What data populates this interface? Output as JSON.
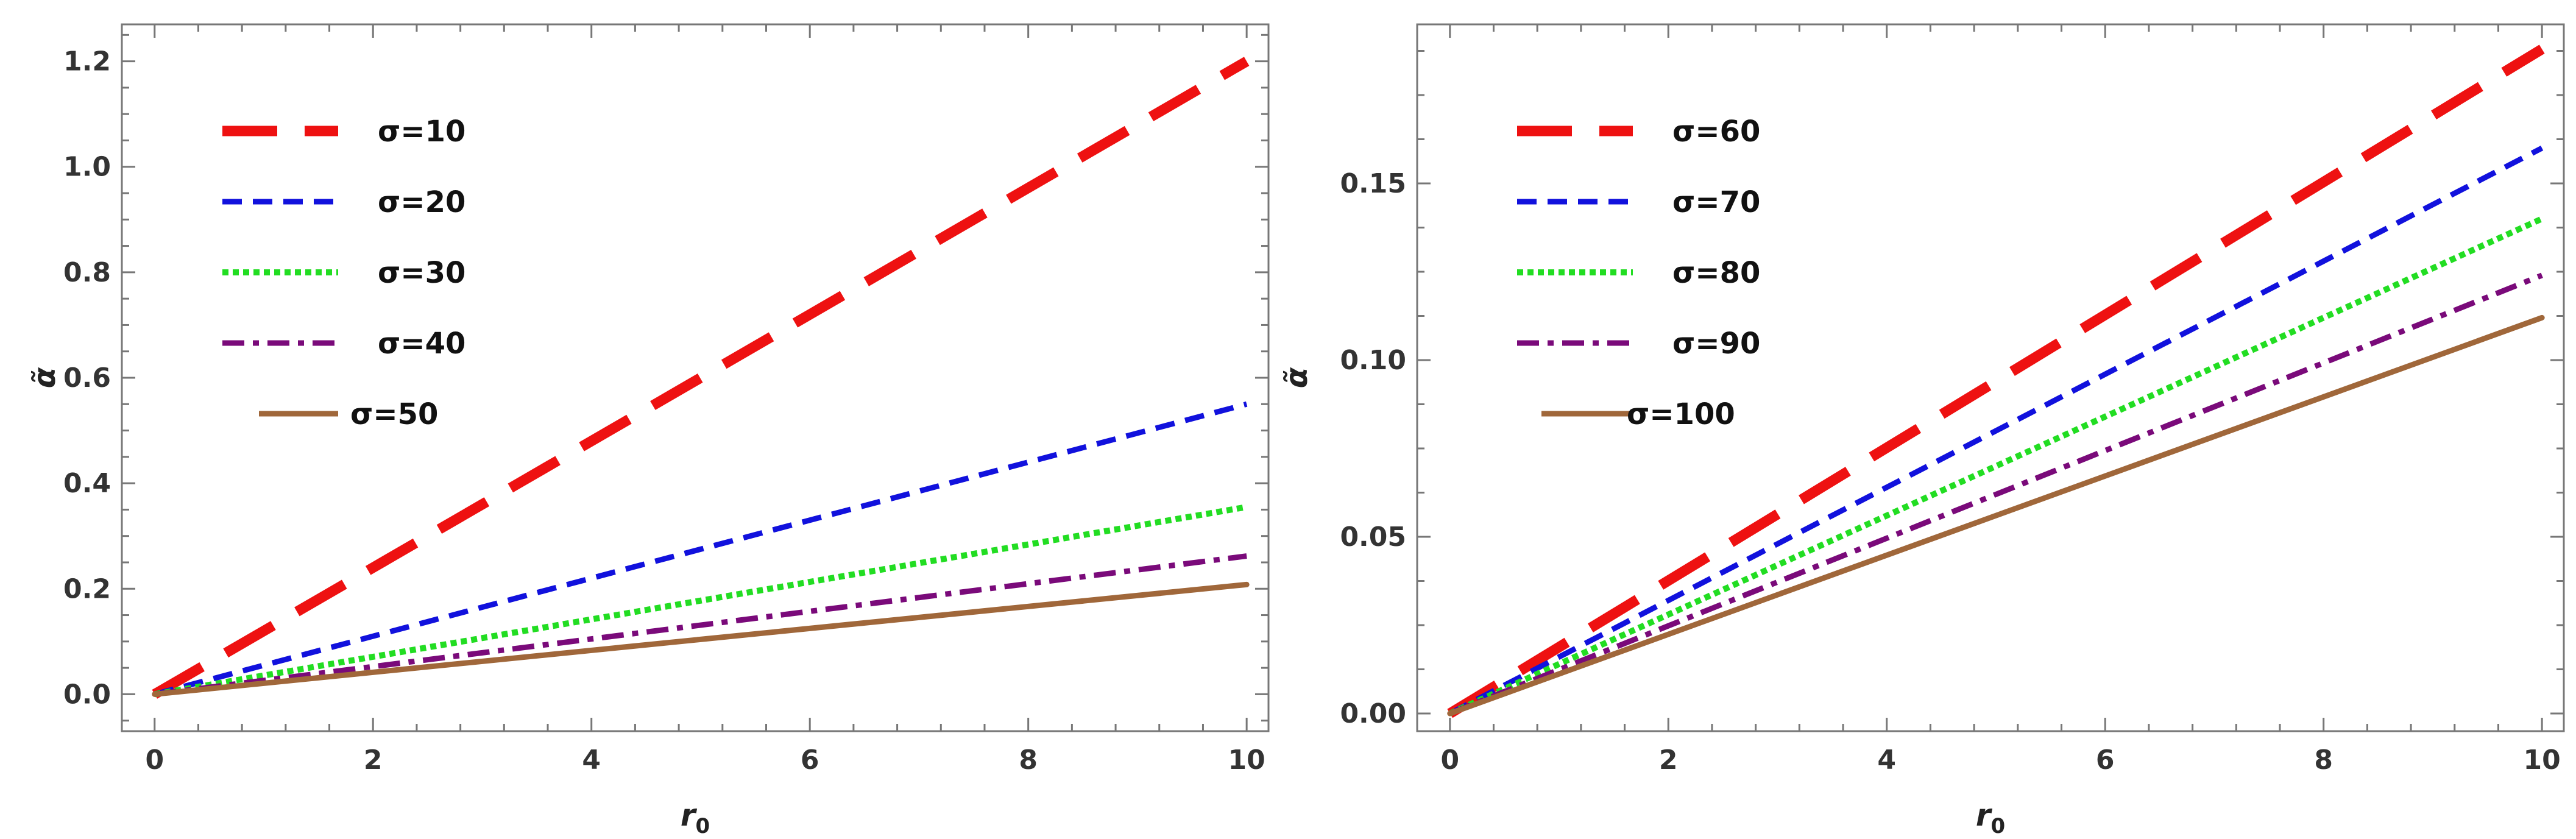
{
  "chart_data": [
    {
      "type": "line",
      "xlabel": "r0",
      "ylabel": "α̃",
      "xlim": [
        -0.3,
        10.2
      ],
      "ylim": [
        -0.07,
        1.27
      ],
      "xticks": [
        0,
        2,
        4,
        6,
        8,
        10
      ],
      "yticks": [
        0.0,
        0.2,
        0.4,
        0.6,
        0.8,
        1.0,
        1.2
      ],
      "ytick_labels": [
        "0.0",
        "0.2",
        "0.4",
        "0.6",
        "0.8",
        "1.0",
        "1.2"
      ],
      "legend_position": "top-left",
      "series": [
        {
          "name": "σ=10",
          "color": "#ee1111",
          "style": "long-dash",
          "x": [
            0,
            10
          ],
          "y": [
            0,
            1.2
          ]
        },
        {
          "name": "σ=20",
          "color": "#1111dd",
          "style": "dash",
          "x": [
            0,
            10
          ],
          "y": [
            0,
            0.55
          ]
        },
        {
          "name": "σ=30",
          "color": "#22dd22",
          "style": "dot",
          "x": [
            0,
            10
          ],
          "y": [
            0,
            0.355
          ]
        },
        {
          "name": "σ=40",
          "color": "#7a0a7a",
          "style": "dash-dot",
          "x": [
            0,
            10
          ],
          "y": [
            0,
            0.262
          ]
        },
        {
          "name": "σ=50",
          "color": "#a0673a",
          "style": "solid",
          "x": [
            0,
            10
          ],
          "y": [
            0,
            0.208
          ]
        }
      ]
    },
    {
      "type": "line",
      "xlabel": "r0",
      "ylabel": "α̃",
      "xlim": [
        -0.3,
        10.2
      ],
      "ylim": [
        -0.005,
        0.195
      ],
      "xticks": [
        0,
        2,
        4,
        6,
        8,
        10
      ],
      "yticks": [
        0.0,
        0.05,
        0.1,
        0.15
      ],
      "ytick_labels": [
        "0.00",
        "0.05",
        "0.10",
        "0.15"
      ],
      "legend_position": "top-left",
      "series": [
        {
          "name": "σ=60",
          "color": "#ee1111",
          "style": "long-dash",
          "x": [
            0,
            10
          ],
          "y": [
            0,
            0.188
          ]
        },
        {
          "name": "σ=70",
          "color": "#1111dd",
          "style": "dash",
          "x": [
            0,
            10
          ],
          "y": [
            0,
            0.16
          ]
        },
        {
          "name": "σ=80",
          "color": "#22dd22",
          "style": "dot",
          "x": [
            0,
            10
          ],
          "y": [
            0,
            0.14
          ]
        },
        {
          "name": "σ=90",
          "color": "#7a0a7a",
          "style": "dash-dot",
          "x": [
            0,
            10
          ],
          "y": [
            0,
            0.124
          ]
        },
        {
          "name": "σ=100",
          "color": "#a0673a",
          "style": "solid",
          "x": [
            0,
            10
          ],
          "y": [
            0,
            0.112
          ]
        }
      ]
    }
  ]
}
